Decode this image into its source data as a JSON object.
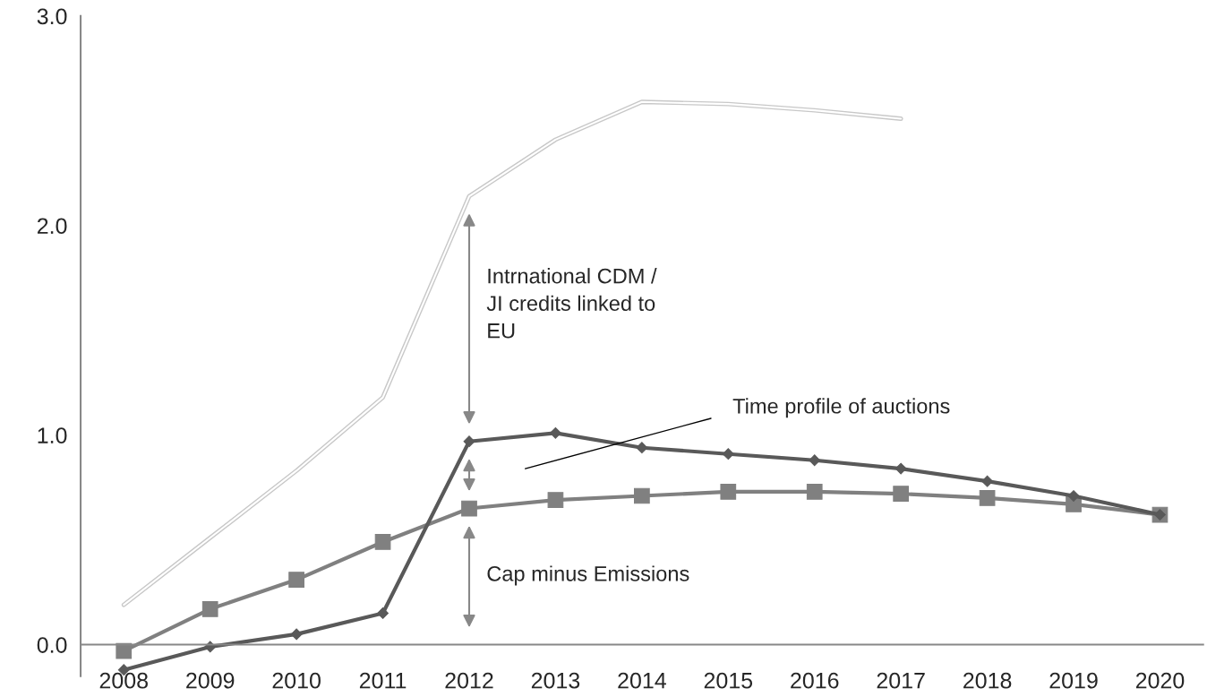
{
  "chart_data": {
    "type": "line",
    "categories": [
      "2008",
      "2009",
      "2010",
      "2011",
      "2012",
      "2013",
      "2014",
      "2015",
      "2016",
      "2017",
      "2018",
      "2019",
      "2020"
    ],
    "series": [
      {
        "color": "#808080",
        "marker": "square",
        "values": [
          -0.03,
          0.17,
          0.31,
          0.49,
          0.65,
          0.69,
          0.71,
          0.73,
          0.73,
          0.72,
          0.7,
          0.67,
          0.62
        ]
      },
      {
        "color": "#595959",
        "marker": "diamond",
        "values": [
          -0.12,
          -0.01,
          0.05,
          0.15,
          0.97,
          1.01,
          0.94,
          0.91,
          0.88,
          0.84,
          0.78,
          0.71,
          0.62
        ]
      },
      {
        "color": "#c8c8c8",
        "marker": "none",
        "values": [
          0.19,
          0.51,
          0.83,
          1.18,
          2.14,
          2.41,
          2.59,
          2.58,
          2.55,
          2.51,
          null,
          null,
          null
        ]
      }
    ],
    "ylim": [
      -0.15,
      3.0
    ],
    "yticks": [
      {
        "value": 0,
        "label": "0.0"
      },
      {
        "value": 1,
        "label": "1.0"
      },
      {
        "value": 2,
        "label": "2.0"
      },
      {
        "value": 3,
        "label": "3.0"
      }
    ],
    "grid": false,
    "legend": false,
    "annotations": [
      "Intrnational CDM /\nJI credits linked to\nEU",
      "Time profile of auctions",
      "Cap minus Emissions"
    ]
  }
}
